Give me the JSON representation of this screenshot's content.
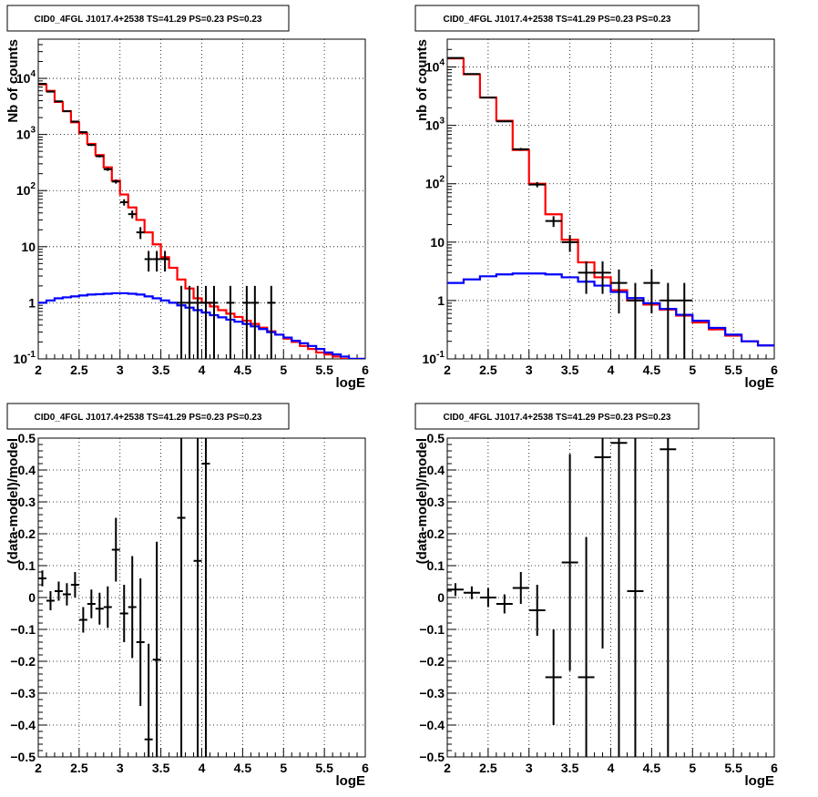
{
  "chart_data": [
    {
      "type": "line",
      "title": "CID0_4FGL J1017.4+2538 TS=41.29 PS=0.23 PS=0.23",
      "xlabel": "logE",
      "ylabel": "Nb of counts",
      "xlim": [
        2,
        6
      ],
      "ylim": [
        0.1,
        50000
      ],
      "log_y": true,
      "grid": true,
      "x_ticks": [
        "2",
        "2.5",
        "3",
        "3.5",
        "4",
        "4.5",
        "5",
        "5.5",
        "6"
      ],
      "y_tick_values": [
        0.1,
        1,
        10,
        100,
        1000,
        10000
      ],
      "y_ticks": [
        "10^-1",
        "1",
        "10",
        "10^2",
        "10^3",
        "10^4"
      ],
      "series": [
        {
          "color": "#ff0000",
          "kind": "step",
          "bin_width": 0.1,
          "x": [
            2.0,
            2.1,
            2.2,
            2.3,
            2.4,
            2.5,
            2.6,
            2.7,
            2.8,
            2.9,
            3.0,
            3.1,
            3.2,
            3.3,
            3.4,
            3.5,
            3.6,
            3.7,
            3.8,
            3.9,
            4.0,
            4.1,
            4.2,
            4.3,
            4.4,
            4.5,
            4.6,
            4.7,
            4.8,
            4.9,
            5.0,
            5.1,
            5.2,
            5.3,
            5.4,
            5.5,
            5.6,
            5.7,
            5.8,
            5.9
          ],
          "values": [
            7800,
            6000,
            3800,
            2600,
            1650,
            1050,
            680,
            430,
            260,
            150,
            85,
            50,
            30,
            18,
            11,
            6.5,
            4.2,
            2.6,
            1.8,
            1.2,
            1.0,
            0.86,
            0.74,
            0.64,
            0.56,
            0.48,
            0.42,
            0.36,
            0.31,
            0.27,
            0.23,
            0.2,
            0.17,
            0.15,
            0.13,
            0.12,
            0.11,
            0.1,
            0.1,
            0.1
          ]
        },
        {
          "color": "#0000ff",
          "kind": "step",
          "bin_width": 0.1,
          "x": [
            2.0,
            2.1,
            2.2,
            2.3,
            2.4,
            2.5,
            2.6,
            2.7,
            2.8,
            2.9,
            3.0,
            3.1,
            3.2,
            3.3,
            3.4,
            3.5,
            3.6,
            3.7,
            3.8,
            3.9,
            4.0,
            4.1,
            4.2,
            4.3,
            4.4,
            4.5,
            4.6,
            4.7,
            4.8,
            4.9,
            5.0,
            5.1,
            5.2,
            5.3,
            5.4,
            5.5,
            5.6,
            5.7,
            5.8,
            5.9
          ],
          "values": [
            1.0,
            1.1,
            1.2,
            1.25,
            1.3,
            1.35,
            1.4,
            1.42,
            1.45,
            1.48,
            1.48,
            1.45,
            1.4,
            1.3,
            1.2,
            1.1,
            1.0,
            0.9,
            0.82,
            0.74,
            0.67,
            0.6,
            0.55,
            0.5,
            0.46,
            0.42,
            0.38,
            0.34,
            0.3,
            0.27,
            0.24,
            0.21,
            0.19,
            0.17,
            0.15,
            0.13,
            0.12,
            0.11,
            0.1,
            0.1
          ]
        },
        {
          "color": "#000000",
          "kind": "points",
          "x": [
            2.05,
            2.15,
            2.25,
            2.35,
            2.45,
            2.55,
            2.65,
            2.75,
            2.85,
            2.95,
            3.05,
            3.15,
            3.25,
            3.35,
            3.45,
            3.55,
            3.75,
            3.85,
            3.95,
            4.05,
            4.15,
            4.35,
            4.55,
            4.65,
            4.85
          ],
          "y": [
            8000,
            5800,
            3900,
            2600,
            1700,
            1100,
            650,
            410,
            240,
            145,
            62,
            38,
            18,
            6,
            6,
            6,
            1,
            1,
            1,
            1,
            1,
            1,
            1,
            1,
            1
          ],
          "yerr": [
            90,
            80,
            65,
            52,
            42,
            33,
            26,
            20,
            16,
            12,
            8,
            6,
            4.3,
            2.4,
            2.4,
            2.4,
            1,
            1,
            1,
            1,
            1,
            1,
            1,
            1,
            1
          ]
        }
      ]
    },
    {
      "type": "line",
      "title": "CID0_4FGL J1017.4+2538 TS=41.29 PS=0.23 PS=0.23",
      "xlabel": "logE",
      "ylabel": "nb of counts",
      "xlim": [
        2,
        6
      ],
      "ylim": [
        0.1,
        30000
      ],
      "log_y": true,
      "grid": true,
      "x_ticks": [
        "2",
        "2.5",
        "3",
        "3.5",
        "4",
        "4.5",
        "5",
        "5.5",
        "6"
      ],
      "y_tick_values": [
        0.1,
        1,
        10,
        100,
        1000,
        10000
      ],
      "y_ticks": [
        "10^-1",
        "1",
        "10",
        "10^2",
        "10^3",
        "10^4"
      ],
      "series": [
        {
          "color": "#ff0000",
          "kind": "step",
          "bin_width": 0.2,
          "x": [
            2.0,
            2.2,
            2.4,
            2.6,
            2.8,
            3.0,
            3.2,
            3.4,
            3.6,
            3.8,
            4.0,
            4.2,
            4.4,
            4.6,
            4.8,
            5.0,
            5.2,
            5.4,
            5.6,
            5.8
          ],
          "values": [
            14000,
            7500,
            3000,
            1200,
            380,
            100,
            30,
            11,
            4.5,
            2.5,
            1.5,
            1.0,
            0.85,
            0.7,
            0.55,
            0.42,
            0.32,
            0.25,
            0.2,
            0.17
          ]
        },
        {
          "color": "#0000ff",
          "kind": "step",
          "bin_width": 0.2,
          "x": [
            2.0,
            2.2,
            2.4,
            2.6,
            2.8,
            3.0,
            3.2,
            3.4,
            3.6,
            3.8,
            4.0,
            4.2,
            4.4,
            4.6,
            4.8,
            5.0,
            5.2,
            5.4,
            5.6,
            5.8
          ],
          "values": [
            2.0,
            2.3,
            2.6,
            2.8,
            2.9,
            2.9,
            2.8,
            2.5,
            2.1,
            1.8,
            1.4,
            1.1,
            0.9,
            0.72,
            0.57,
            0.45,
            0.34,
            0.26,
            0.2,
            0.17
          ]
        },
        {
          "color": "#000000",
          "kind": "points",
          "x": [
            2.1,
            2.3,
            2.5,
            2.7,
            2.9,
            3.1,
            3.3,
            3.5,
            3.7,
            3.9,
            4.1,
            4.3,
            4.5,
            4.7,
            4.9
          ],
          "y": [
            14300,
            7600,
            3000,
            1170,
            390,
            97,
            23,
            10,
            3,
            3,
            2,
            1,
            2,
            1,
            1
          ],
          "yerr": [
            120,
            87,
            55,
            34,
            20,
            10,
            4.8,
            3.2,
            1.7,
            1.7,
            1.4,
            1,
            1.4,
            1,
            1
          ]
        }
      ]
    },
    {
      "type": "scatter",
      "title": "CID0_4FGL J1017.4+2538 TS=41.29 PS=0.23 PS=0.23",
      "xlabel": "logE",
      "ylabel": "(data-model)/model",
      "xlim": [
        2,
        6
      ],
      "ylim": [
        -0.5,
        0.5
      ],
      "grid": true,
      "x_ticks": [
        "2",
        "2.5",
        "3",
        "3.5",
        "4",
        "4.5",
        "5",
        "5.5",
        "6"
      ],
      "y_tick_values": [
        -0.5,
        -0.4,
        -0.3,
        -0.2,
        -0.1,
        0,
        0.1,
        0.2,
        0.3,
        0.4,
        0.5
      ],
      "y_ticks": [
        "−0.5",
        "−0.4",
        "−0.3",
        "−0.2",
        "−0.1",
        "0",
        "0.1",
        "0.2",
        "0.3",
        "0.4",
        "0.5"
      ],
      "series": [
        {
          "color": "#000000",
          "bin_width": 0.1,
          "x": [
            2.05,
            2.15,
            2.25,
            2.35,
            2.45,
            2.55,
            2.65,
            2.75,
            2.85,
            2.95,
            3.05,
            3.15,
            3.25,
            3.35,
            3.45,
            3.75,
            3.95,
            4.05
          ],
          "y": [
            0.06,
            -0.01,
            0.02,
            0.01,
            0.04,
            -0.07,
            -0.02,
            -0.035,
            -0.03,
            0.15,
            -0.05,
            -0.03,
            -0.14,
            -0.445,
            -0.195,
            0.25,
            0.115,
            0.42
          ],
          "yerr": [
            0.025,
            0.03,
            0.03,
            0.035,
            0.04,
            0.04,
            0.045,
            0.05,
            0.065,
            0.1,
            0.09,
            0.16,
            0.2,
            0.3,
            0.37,
            1.0,
            1.0,
            1.0
          ]
        }
      ]
    },
    {
      "type": "scatter",
      "title": "CID0_4FGL J1017.4+2538 TS=41.29 PS=0.23 PS=0.23",
      "xlabel": "logE",
      "ylabel": "(data-model)/model",
      "xlim": [
        2,
        6
      ],
      "ylim": [
        -0.5,
        0.5
      ],
      "grid": true,
      "x_ticks": [
        "2",
        "2.5",
        "3",
        "3.5",
        "4",
        "4.5",
        "5",
        "5.5",
        "6"
      ],
      "y_tick_values": [
        -0.5,
        -0.4,
        -0.3,
        -0.2,
        -0.1,
        0,
        0.1,
        0.2,
        0.3,
        0.4,
        0.5
      ],
      "y_ticks": [
        "−0.5",
        "−0.4",
        "−0.3",
        "−0.2",
        "−0.1",
        "0",
        "0.1",
        "0.2",
        "0.3",
        "0.4",
        "0.5"
      ],
      "series": [
        {
          "color": "#000000",
          "bin_width": 0.2,
          "x": [
            2.1,
            2.3,
            2.5,
            2.7,
            2.9,
            3.1,
            3.3,
            3.5,
            3.7,
            3.9,
            4.1,
            4.3,
            4.7
          ],
          "y": [
            0.025,
            0.015,
            0.0,
            -0.02,
            0.03,
            -0.04,
            -0.25,
            0.11,
            -0.25,
            0.44,
            0.485,
            0.02,
            0.465
          ],
          "yerr": [
            0.02,
            0.02,
            0.03,
            0.03,
            0.05,
            0.08,
            0.15,
            0.34,
            0.44,
            0.6,
            1.0,
            1.0,
            1.0
          ]
        }
      ]
    }
  ]
}
